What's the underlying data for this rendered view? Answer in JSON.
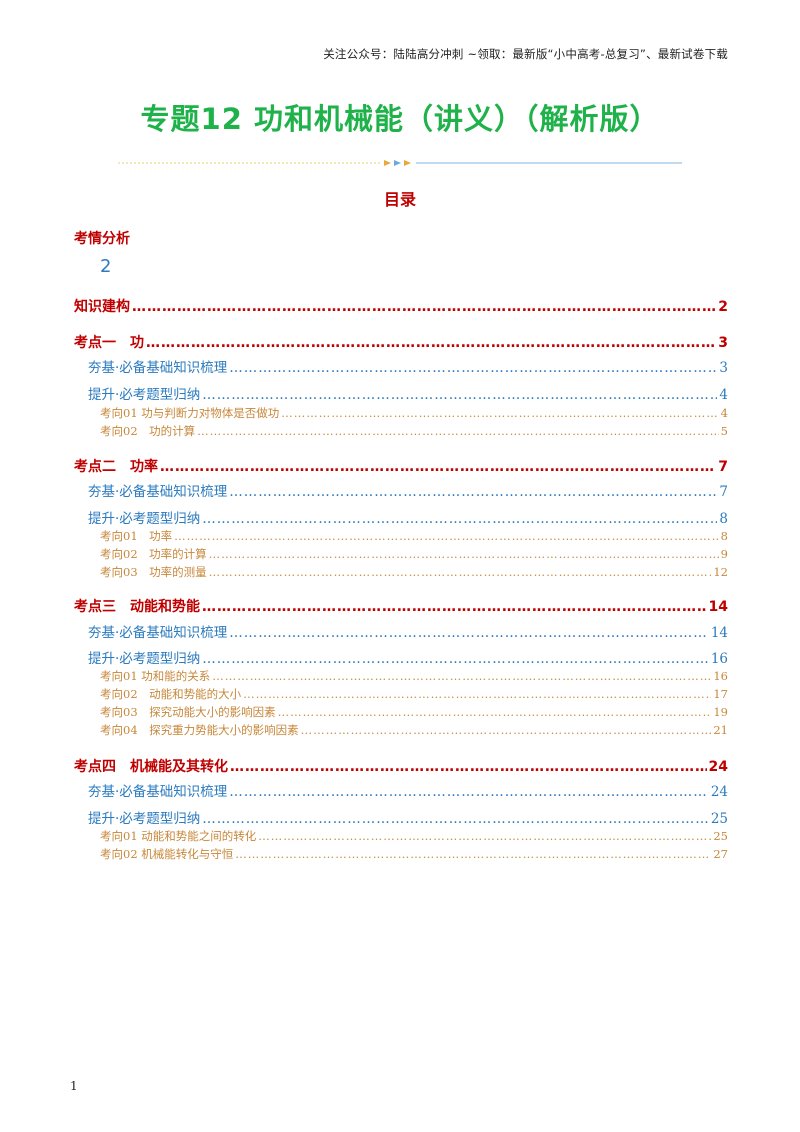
{
  "header_note": "关注公众号：陆陆高分冲刺  ~领取：最新版“小中高考-总复习”、最新试卷下载",
  "title": "专题12   功和机械能（讲义）（解析版）",
  "toc_heading": "目录",
  "intro": {
    "label": "考情分析",
    "page": "2"
  },
  "dots": "…………………………………………………………………………………………………………………………………………………………………………………………………………………………………………………………………………………………………………",
  "toc": [
    {
      "label": "知识建构",
      "page": "2"
    },
    {
      "label": "考点一　功",
      "page": "3"
    },
    {
      "label": "夯基·必备基础知识梳理",
      "page": "3"
    },
    {
      "label": "提升·必考题型归纳",
      "page": "4"
    },
    {
      "label": "考向01 功与判断力对物体是否做功",
      "page": "4"
    },
    {
      "label": "考向02　功的计算",
      "page": "5"
    },
    {
      "label": "考点二　功率",
      "page": "7"
    },
    {
      "label": "夯基·必备基础知识梳理",
      "page": "7"
    },
    {
      "label": "提升·必考题型归纳",
      "page": "8"
    },
    {
      "label": "考向01　功率",
      "page": "8"
    },
    {
      "label": "考向02　功率的计算",
      "page": "9"
    },
    {
      "label": "考向03　功率的测量",
      "page": "12"
    },
    {
      "label": "考点三　动能和势能",
      "page": "14"
    },
    {
      "label": "夯基·必备基础知识梳理",
      "page": "14"
    },
    {
      "label": "提升·必考题型归纳",
      "page": "16"
    },
    {
      "label": "考向01 功和能的关系",
      "page": "16"
    },
    {
      "label": "考向02　动能和势能的大小",
      "page": "17"
    },
    {
      "label": "考向03　探究动能大小的影响因素",
      "page": "19"
    },
    {
      "label": "考向04　探究重力势能大小的影响因素",
      "page": "21"
    },
    {
      "label": "考点四　机械能及其转化",
      "page": "24"
    },
    {
      "label": "夯基·必备基础知识梳理",
      "page": "24"
    },
    {
      "label": "提升·必考题型归纳",
      "page": "25"
    },
    {
      "label": "考向01 动能和势能之间的转化",
      "page": "25"
    },
    {
      "label": "考向02 机械能转化与守恒",
      "page": "27"
    }
  ],
  "footer_page": "1"
}
